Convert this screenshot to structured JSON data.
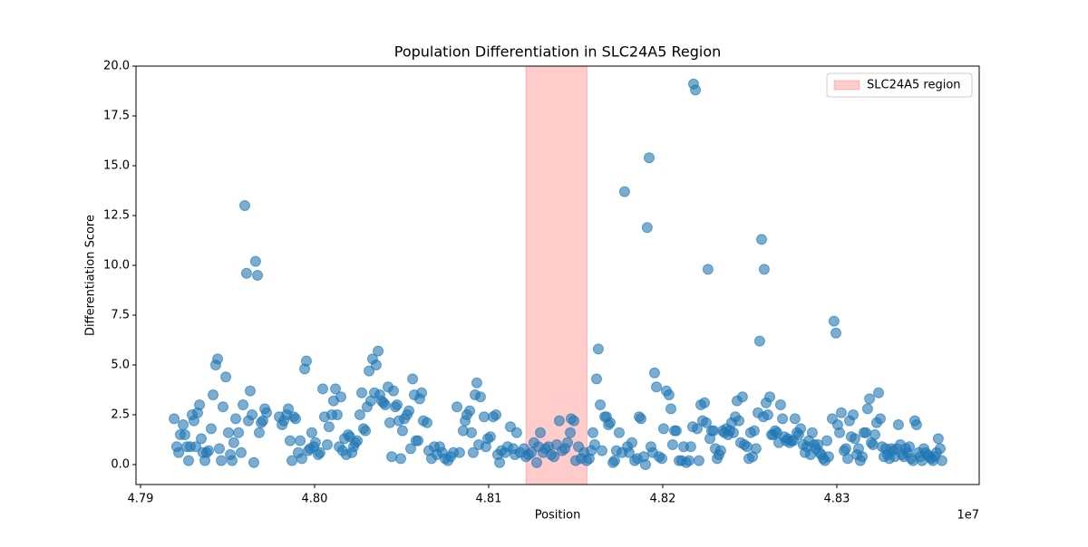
{
  "chart_data": {
    "type": "scatter",
    "title": "Population Differentiation in SLC24A5 Region",
    "x_label": "Position",
    "y_label": "Differentiation Score",
    "x_offset_label": "1e7",
    "xlim": [
      47897400,
      48381800
    ],
    "ylim": [
      -1.0,
      20.0
    ],
    "xticks": [
      {
        "value": 47900000,
        "label": "4.79"
      },
      {
        "value": 48000000,
        "label": "4.80"
      },
      {
        "value": 48100000,
        "label": "4.81"
      },
      {
        "value": 48200000,
        "label": "4.82"
      },
      {
        "value": 48300000,
        "label": "4.83"
      }
    ],
    "yticks": [
      {
        "value": 0,
        "label": "0.0"
      },
      2.5,
      {
        "value": 5,
        "label": "5.0"
      },
      7.5,
      {
        "value": 10,
        "label": "10.0"
      },
      12.5,
      {
        "value": 15,
        "label": "15.0"
      },
      17.5,
      {
        "value": 20,
        "label": "20.0"
      }
    ],
    "grid": false,
    "legend_position": "upper right",
    "highlight": {
      "name": "SLC24A5 region",
      "start": 48121400,
      "end": 48156500,
      "color": "#ff0000",
      "alpha": 0.2
    },
    "series": [
      {
        "color": "#1f77b4",
        "alpha": 0.6,
        "x": [
          47919300,
          47920800,
          47921900,
          47922900,
          47924500,
          47925500,
          47926600,
          47927600,
          47928600,
          47929700,
          47930700,
          47931800,
          47932800,
          47933900,
          47934900,
          47935900,
          47937000,
          47938000,
          47939100,
          47940600,
          47941700,
          47943200,
          47944300,
          47945300,
          47946400,
          47947400,
          47949000,
          47950500,
          47951600,
          47952600,
          47953600,
          47954700,
          47956300,
          47957800,
          47958900,
          47959900,
          47960900,
          47962000,
          47963000,
          47964100,
          47965100,
          47966100,
          47967200,
          47968200,
          47969300,
          47970300,
          47971400,
          47972400,
          47979700,
          47981300,
          47982300,
          47983900,
          47984900,
          47985900,
          47987000,
          47988000,
          47989100,
          47990600,
          47991700,
          47992700,
          47994300,
          47995300,
          47996400,
          47997400,
          47998400,
          47999500,
          48000500,
          48002100,
          48003100,
          48004700,
          48005700,
          48007300,
          48008300,
          48009900,
          48010900,
          48012000,
          48013000,
          48014100,
          48015100,
          48016100,
          48017200,
          48018200,
          48019300,
          48020300,
          48021400,
          48022400,
          48023400,
          48024500,
          48026000,
          48027100,
          48028100,
          48029200,
          48030200,
          48031300,
          48032300,
          48033300,
          48034400,
          48035400,
          48036500,
          48037500,
          48038500,
          48039600,
          48040600,
          48042200,
          48043200,
          48044300,
          48045300,
          48046400,
          48047400,
          48048400,
          48049500,
          48050500,
          48051600,
          48053100,
          48054200,
          48055200,
          48056300,
          48057300,
          48058300,
          48059400,
          48060400,
          48061500,
          48062500,
          48064600,
          48065600,
          48067200,
          48068800,
          48070300,
          48071900,
          48073400,
          48075000,
          48076600,
          48078100,
          48079700,
          48081800,
          48083300,
          48085400,
          48086500,
          48087500,
          48089100,
          48090100,
          48091100,
          48092200,
          48093200,
          48094300,
          48095300,
          48097400,
          48098400,
          48099500,
          48101000,
          48102600,
          48104200,
          48105200,
          48106300,
          48107300,
          48109400,
          48110900,
          48112500,
          48114100,
          48115100,
          48116100,
          48118200,
          48120300,
          48121400,
          48122900,
          48124500,
          48126000,
          48127600,
          48128600,
          48129700,
          48131300,
          48132800,
          48134400,
          48135900,
          48137500,
          48139100,
          48140600,
          48142200,
          48143800,
          48145300,
          48146900,
          48147400,
          48149000,
          48150000,
          48151600,
          48153100,
          48154700,
          48156300,
          48157800,
          48158900,
          48159900,
          48160900,
          48162000,
          48163000,
          48164100,
          48165100,
          48166700,
          48167700,
          48168800,
          48169800,
          48171400,
          48172400,
          48173400,
          48175000,
          48176600,
          48178100,
          48179700,
          48180700,
          48182300,
          48183900,
          48185400,
          48186500,
          48187500,
          48189100,
          48190100,
          48191100,
          48192200,
          48193200,
          48194300,
          48195300,
          48196400,
          48197900,
          48199500,
          48200500,
          48202100,
          48203600,
          48204700,
          48205700,
          48206800,
          48207800,
          48209400,
          48210900,
          48212000,
          48213500,
          48215100,
          48216100,
          48217200,
          48217700,
          48218800,
          48219800,
          48220800,
          48221900,
          48222900,
          48224000,
          48225000,
          48226000,
          48227100,
          48228100,
          48229200,
          48230200,
          48231300,
          48232300,
          48233300,
          48234400,
          48235400,
          48236500,
          48237500,
          48238500,
          48239600,
          48240600,
          48241700,
          48242700,
          48243800,
          48244800,
          48245800,
          48246900,
          48248400,
          48249500,
          48250500,
          48251600,
          48252600,
          48253600,
          48254700,
          48255700,
          48256800,
          48257800,
          48258300,
          48259400,
          48260400,
          48261500,
          48262500,
          48263500,
          48264600,
          48265600,
          48266700,
          48267700,
          48268800,
          48269800,
          48270800,
          48271900,
          48272900,
          48274000,
          48275000,
          48276000,
          48277100,
          48278100,
          48279200,
          48280700,
          48281800,
          48282800,
          48283900,
          48284900,
          48285900,
          48287000,
          48288000,
          48289100,
          48290100,
          48291100,
          48292200,
          48293200,
          48294300,
          48295300,
          48297400,
          48298400,
          48299500,
          48300500,
          48301600,
          48302600,
          48304200,
          48305200,
          48306300,
          48307300,
          48308300,
          48309400,
          48310400,
          48311500,
          48312500,
          48313500,
          48314600,
          48315600,
          48316700,
          48317700,
          48318800,
          48319800,
          48320800,
          48321900,
          48322900,
          48324000,
          48325000,
          48326000,
          48327100,
          48328100,
          48329200,
          48330200,
          48331300,
          48332300,
          48333300,
          48334400,
          48335400,
          48336500,
          48337500,
          48338500,
          48339600,
          48340600,
          48341700,
          48342700,
          48343800,
          48344800,
          48345800,
          48346900,
          48347900,
          48349000,
          48350000,
          48351000,
          48352100,
          48353100,
          48354200,
          48355200,
          48356300,
          48357300,
          48358300,
          48359400,
          48360400
        ],
        "values": [
          2.3,
          0.9,
          0.6,
          1.5,
          2.0,
          1.5,
          0.9,
          0.2,
          0.9,
          2.5,
          2.2,
          0.9,
          2.6,
          3.0,
          1.3,
          0.6,
          0.2,
          0.6,
          0.7,
          1.8,
          3.5,
          5.0,
          5.3,
          0.8,
          0.2,
          2.9,
          4.4,
          1.6,
          0.5,
          0.2,
          1.1,
          2.3,
          1.6,
          0.6,
          3.0,
          13.0,
          9.6,
          2.2,
          3.7,
          2.5,
          0.1,
          10.2,
          9.5,
          1.6,
          2.1,
          2.2,
          2.8,
          2.6,
          2.4,
          2.0,
          2.2,
          2.5,
          2.8,
          1.2,
          0.2,
          2.4,
          2.3,
          0.6,
          1.2,
          0.3,
          4.8,
          5.2,
          0.7,
          0.8,
          1.6,
          0.9,
          1.1,
          0.5,
          0.6,
          3.8,
          2.4,
          1.0,
          1.9,
          2.5,
          3.2,
          3.8,
          2.5,
          0.9,
          3.4,
          0.7,
          1.3,
          0.5,
          1.5,
          1.4,
          0.6,
          0.9,
          1.1,
          1.2,
          2.5,
          3.6,
          1.8,
          1.7,
          2.9,
          4.7,
          3.2,
          5.3,
          3.6,
          5.0,
          5.7,
          3.5,
          3.2,
          3.1,
          3.0,
          3.9,
          2.1,
          0.4,
          3.7,
          2.9,
          3.0,
          2.2,
          0.3,
          1.7,
          2.3,
          2.5,
          2.7,
          0.8,
          4.3,
          3.5,
          1.2,
          1.2,
          3.3,
          3.6,
          2.2,
          2.1,
          0.7,
          0.3,
          0.9,
          0.5,
          0.9,
          0.6,
          0.3,
          0.2,
          0.4,
          0.6,
          2.9,
          0.6,
          1.7,
          2.2,
          2.5,
          2.7,
          1.6,
          0.6,
          3.5,
          4.1,
          1.0,
          3.4,
          2.4,
          0.9,
          1.3,
          1.4,
          2.4,
          2.5,
          0.5,
          0.1,
          0.7,
          0.6,
          0.9,
          1.9,
          0.8,
          0.5,
          1.6,
          0.6,
          0.8,
          0.4,
          0.5,
          0.6,
          1.1,
          0.1,
          0.9,
          1.6,
          0.6,
          0.8,
          0.9,
          0.5,
          0.4,
          1.0,
          2.2,
          0.7,
          0.8,
          1.1,
          1.6,
          2.3,
          2.2,
          0.2,
          0.9,
          0.3,
          0.6,
          0.2,
          0.3,
          0.7,
          1.6,
          1.0,
          4.3,
          5.8,
          3.0,
          0.7,
          2.4,
          2.4,
          2.0,
          2.1,
          0.1,
          0.2,
          0.7,
          1.6,
          0.6,
          13.7,
          0.9,
          0.6,
          1.1,
          0.2,
          0.3,
          2.4,
          2.3,
          0.4,
          0.0,
          11.9,
          15.4,
          0.9,
          0.6,
          4.6,
          3.9,
          0.4,
          0.3,
          1.8,
          3.7,
          3.5,
          2.8,
          1.0,
          1.7,
          1.7,
          0.2,
          0.2,
          0.9,
          0.1,
          0.2,
          0.9,
          1.9,
          19.1,
          18.8,
          1.8,
          0.2,
          3.0,
          2.2,
          3.1,
          2.1,
          9.8,
          1.3,
          1.7,
          1.7,
          0.8,
          0.3,
          0.5,
          0.7,
          1.7,
          1.6,
          1.8,
          1.5,
          1.7,
          2.1,
          1.6,
          2.4,
          3.2,
          2.2,
          1.1,
          3.4,
          1.0,
          0.9,
          0.3,
          1.6,
          0.4,
          1.7,
          0.8,
          2.6,
          6.2,
          11.3,
          2.4,
          9.8,
          3.1,
          2.5,
          3.4,
          1.5,
          1.5,
          1.7,
          1.6,
          1.1,
          3.0,
          2.3,
          1.4,
          1.2,
          1.3,
          1.1,
          1.2,
          1.2,
          2.3,
          1.6,
          1.5,
          1.8,
          1.0,
          0.6,
          0.9,
          1.2,
          0.5,
          1.6,
          1.0,
          0.8,
          1.0,
          0.6,
          0.5,
          0.3,
          0.2,
          1.2,
          0.4,
          2.3,
          7.2,
          6.6,
          2.0,
          1.6,
          2.6,
          0.7,
          0.8,
          0.3,
          2.2,
          1.4,
          2.5,
          1.3,
          0.5,
          0.8,
          0.2,
          0.4,
          1.6,
          1.6,
          2.8,
          3.3,
          1.1,
          1.0,
          1.5,
          2.1,
          3.6,
          2.3,
          0.9,
          0.4,
          0.8,
          0.5,
          0.3,
          0.8,
          0.7,
          0.4,
          0.8,
          2.0,
          1.0,
          0.5,
          0.4,
          0.8,
          0.6,
          0.9,
          0.3,
          0.2,
          2.2,
          2.0,
          0.6,
          0.4,
          0.2,
          0.8,
          0.6,
          0.5,
          0.4,
          0.3,
          0.2,
          0.4,
          0.6,
          1.3,
          0.8,
          0.2
        ]
      }
    ]
  }
}
